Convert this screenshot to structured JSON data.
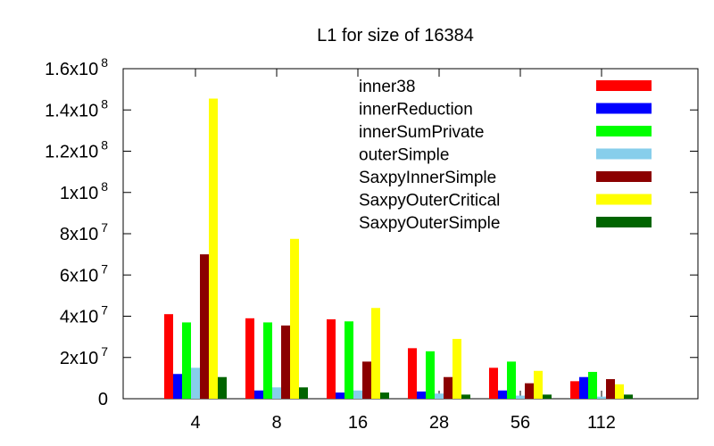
{
  "chart_data": {
    "type": "bar",
    "title": "L1 for size of 16384",
    "xlabel": "",
    "ylabel": "",
    "categories": [
      "4",
      "8",
      "16",
      "28",
      "56",
      "112"
    ],
    "ylim": [
      0,
      160000000
    ],
    "y_ticks": [
      {
        "value": 0,
        "mantissa": "0",
        "exp": ""
      },
      {
        "value": 20000000,
        "mantissa": "2x10",
        "exp": "7"
      },
      {
        "value": 40000000,
        "mantissa": "4x10",
        "exp": "7"
      },
      {
        "value": 60000000,
        "mantissa": "6x10",
        "exp": "7"
      },
      {
        "value": 80000000,
        "mantissa": "8x10",
        "exp": "7"
      },
      {
        "value": 100000000,
        "mantissa": "1x10",
        "exp": "8"
      },
      {
        "value": 120000000,
        "mantissa": "1.2x10",
        "exp": "8"
      },
      {
        "value": 140000000,
        "mantissa": "1.4x10",
        "exp": "8"
      },
      {
        "value": 160000000,
        "mantissa": "1.6x10",
        "exp": "8"
      }
    ],
    "legend_position": "top-right",
    "grid": false,
    "series": [
      {
        "name": "inner38",
        "color": "#ff0000",
        "values": [
          41000000,
          39000000,
          38500000,
          24500000,
          15000000,
          8500000
        ]
      },
      {
        "name": "innerReduction",
        "color": "#0000ff",
        "values": [
          12000000,
          4000000,
          3000000,
          3500000,
          4000000,
          10500000
        ]
      },
      {
        "name": "innerSumPrivate",
        "color": "#00ff00",
        "values": [
          37000000,
          37000000,
          37500000,
          23000000,
          18000000,
          13000000
        ]
      },
      {
        "name": "outerSimple",
        "color": "#87ceeb",
        "values": [
          15000000,
          5500000,
          4000000,
          2500000,
          1500000,
          1000000
        ]
      },
      {
        "name": "SaxpyInnerSimple",
        "color": "#8b0000",
        "values": [
          70000000,
          35500000,
          18000000,
          10500000,
          7500000,
          9500000
        ]
      },
      {
        "name": "SaxpyOuterCritical",
        "color": "#ffff00",
        "values": [
          145500000,
          77500000,
          44000000,
          29000000,
          13500000,
          7000000
        ]
      },
      {
        "name": "SaxpyOuterSimple",
        "color": "#006400",
        "values": [
          10500000,
          5500000,
          3000000,
          2000000,
          2000000,
          2000000
        ]
      }
    ]
  }
}
